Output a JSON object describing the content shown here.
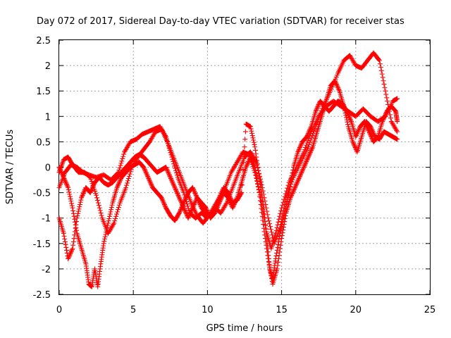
{
  "chart_data": {
    "type": "scatter",
    "title": "Day 072 of 2017, Sidereal Day-to-day VTEC variation (SDTVAR) for receiver stas",
    "xlabel": "GPS time / hours",
    "ylabel": "SDTVAR / TECUs",
    "xlim": [
      0,
      25
    ],
    "ylim": [
      -2.5,
      2.5
    ],
    "xticks": [
      "0",
      "5",
      "10",
      "15",
      "20",
      "25"
    ],
    "yticks": [
      "-2.5",
      "-2",
      "-1.5",
      "-1",
      "-0.5",
      "0",
      "0.5",
      "1",
      "1.5",
      "2",
      "2.5"
    ],
    "grid": true,
    "marker": "+",
    "color": "#ff0000",
    "series": [
      {
        "points": [
          [
            0,
            -0.4
          ],
          [
            0.4,
            -0.1
          ],
          [
            0.8,
            0.05
          ],
          [
            1.2,
            0.0
          ],
          [
            1.6,
            -0.1
          ],
          [
            2.0,
            -0.15
          ],
          [
            2.5,
            -0.2
          ],
          [
            3.0,
            -0.15
          ],
          [
            3.5,
            -0.25
          ],
          [
            4.0,
            -0.1
          ],
          [
            4.4,
            0.3
          ],
          [
            4.8,
            0.5
          ],
          [
            5.2,
            0.55
          ],
          [
            5.6,
            0.65
          ],
          [
            6.0,
            0.7
          ],
          [
            6.4,
            0.75
          ],
          [
            6.8,
            0.8
          ],
          [
            7.2,
            0.6
          ],
          [
            7.6,
            0.2
          ],
          [
            8.0,
            -0.2
          ],
          [
            8.4,
            -0.5
          ],
          [
            8.8,
            -0.9
          ],
          [
            9.2,
            -1.0
          ],
          [
            9.6,
            -0.9
          ],
          [
            10.0,
            -1.0
          ],
          [
            10.4,
            -0.8
          ],
          [
            10.8,
            -0.6
          ],
          [
            11.2,
            -0.4
          ],
          [
            11.6,
            -0.1
          ],
          [
            12.0,
            0.1
          ],
          [
            12.4,
            0.3
          ],
          [
            12.8,
            0.25
          ],
          [
            13.2,
            -0.1
          ],
          [
            13.6,
            -0.6
          ],
          [
            14.0,
            -1.3
          ],
          [
            14.3,
            -1.6
          ],
          [
            14.6,
            -1.3
          ],
          [
            15.0,
            -0.8
          ],
          [
            15.5,
            -0.3
          ],
          [
            16.0,
            0.0
          ],
          [
            16.5,
            0.3
          ],
          [
            17.0,
            0.7
          ],
          [
            17.5,
            1.0
          ],
          [
            18.0,
            1.2
          ],
          [
            18.5,
            1.3
          ],
          [
            19.0,
            1.2
          ],
          [
            19.5,
            1.1
          ],
          [
            20.0,
            1.0
          ],
          [
            20.5,
            1.15
          ],
          [
            21.0,
            1.0
          ],
          [
            21.5,
            0.9
          ],
          [
            22.0,
            1.0
          ],
          [
            22.5,
            1.3
          ],
          [
            22.8,
            1.35
          ]
        ]
      },
      {
        "points": [
          [
            0,
            -0.1
          ],
          [
            0.3,
            0.15
          ],
          [
            0.6,
            0.2
          ],
          [
            0.9,
            0.05
          ],
          [
            1.3,
            -0.1
          ],
          [
            1.7,
            -0.1
          ],
          [
            2.1,
            -0.2
          ],
          [
            2.5,
            -0.55
          ],
          [
            2.9,
            -1.0
          ],
          [
            3.3,
            -1.3
          ],
          [
            3.7,
            -1.1
          ],
          [
            4.1,
            -0.7
          ],
          [
            4.5,
            -0.4
          ],
          [
            4.9,
            0.0
          ],
          [
            5.3,
            0.2
          ],
          [
            5.7,
            0.35
          ],
          [
            6.1,
            0.5
          ],
          [
            6.5,
            0.7
          ],
          [
            6.9,
            0.75
          ],
          [
            7.3,
            0.5
          ],
          [
            7.7,
            0.2
          ],
          [
            8.1,
            -0.1
          ],
          [
            8.5,
            -0.4
          ],
          [
            8.9,
            -0.7
          ],
          [
            9.3,
            -0.95
          ],
          [
            9.7,
            -1.1
          ],
          [
            10.1,
            -0.95
          ],
          [
            10.5,
            -0.8
          ],
          [
            10.9,
            -0.9
          ],
          [
            11.3,
            -0.7
          ],
          [
            11.7,
            -0.4
          ],
          [
            12.1,
            -0.1
          ],
          [
            12.5,
            0.2
          ],
          [
            12.9,
            0.3
          ],
          [
            13.3,
            0.1
          ],
          [
            13.7,
            -0.4
          ],
          [
            14.1,
            -1.0
          ],
          [
            14.5,
            -1.5
          ],
          [
            14.9,
            -1.2
          ],
          [
            15.3,
            -0.6
          ],
          [
            15.8,
            -0.2
          ],
          [
            16.3,
            0.1
          ],
          [
            16.8,
            0.4
          ],
          [
            17.3,
            0.8
          ],
          [
            17.8,
            1.2
          ],
          [
            18.3,
            1.5
          ],
          [
            18.8,
            1.85
          ],
          [
            19.2,
            2.1
          ],
          [
            19.6,
            2.2
          ],
          [
            20.0,
            2.0
          ],
          [
            20.4,
            1.95
          ],
          [
            20.8,
            2.1
          ],
          [
            21.2,
            2.25
          ],
          [
            21.6,
            2.1
          ],
          [
            22.0,
            1.5
          ],
          [
            22.4,
            0.9
          ],
          [
            22.8,
            0.7
          ]
        ]
      },
      {
        "points": [
          [
            0,
            -1.0
          ],
          [
            0.3,
            -1.3
          ],
          [
            0.6,
            -1.8
          ],
          [
            0.9,
            -1.6
          ],
          [
            1.2,
            -1.0
          ],
          [
            1.5,
            -0.6
          ],
          [
            1.8,
            -0.4
          ],
          [
            2.1,
            -0.5
          ],
          [
            2.4,
            -0.3
          ],
          [
            2.7,
            -0.2
          ],
          [
            3.0,
            -0.3
          ],
          [
            3.3,
            -0.35
          ],
          [
            3.6,
            -0.3
          ],
          [
            3.9,
            -0.2
          ],
          [
            4.2,
            -0.1
          ],
          [
            4.5,
            0.0
          ],
          [
            4.8,
            0.1
          ],
          [
            5.1,
            0.2
          ],
          [
            5.4,
            0.25
          ],
          [
            5.7,
            0.2
          ],
          [
            6.0,
            0.1
          ],
          [
            6.3,
            0.0
          ],
          [
            6.6,
            -0.1
          ],
          [
            6.9,
            -0.05
          ],
          [
            7.2,
            0.0
          ],
          [
            7.5,
            -0.2
          ],
          [
            7.8,
            -0.4
          ],
          [
            8.1,
            -0.6
          ],
          [
            8.4,
            -0.8
          ],
          [
            8.7,
            -1.0
          ],
          [
            9.0,
            -0.8
          ],
          [
            9.3,
            -0.6
          ],
          [
            9.6,
            -0.7
          ],
          [
            9.9,
            -0.8
          ],
          [
            10.2,
            -1.0
          ],
          [
            10.5,
            -0.9
          ],
          [
            10.8,
            -0.7
          ],
          [
            11.1,
            -0.5
          ],
          [
            11.4,
            -0.6
          ],
          [
            11.7,
            -0.8
          ],
          [
            12.0,
            -0.6
          ],
          [
            12.3,
            -0.3
          ],
          [
            12.6,
            0.0
          ],
          [
            12.9,
            0.2
          ],
          [
            13.2,
            0.0
          ],
          [
            13.5,
            -0.5
          ],
          [
            13.8,
            -1.2
          ],
          [
            14.1,
            -1.8
          ],
          [
            14.4,
            -2.3
          ],
          [
            14.7,
            -2.0
          ],
          [
            15.0,
            -1.4
          ],
          [
            15.3,
            -0.9
          ],
          [
            15.6,
            -0.6
          ],
          [
            15.9,
            -0.4
          ],
          [
            16.2,
            -0.2
          ],
          [
            16.5,
            0.0
          ],
          [
            16.8,
            0.2
          ],
          [
            17.1,
            0.4
          ],
          [
            17.4,
            0.7
          ],
          [
            17.7,
            1.0
          ],
          [
            18.0,
            1.3
          ],
          [
            18.3,
            1.6
          ],
          [
            18.6,
            1.7
          ],
          [
            18.9,
            1.5
          ],
          [
            19.2,
            1.2
          ],
          [
            19.5,
            0.8
          ],
          [
            19.8,
            0.5
          ],
          [
            20.1,
            0.3
          ],
          [
            20.4,
            0.6
          ],
          [
            20.7,
            0.9
          ],
          [
            21.0,
            0.8
          ],
          [
            21.3,
            0.6
          ],
          [
            21.6,
            0.55
          ],
          [
            21.9,
            0.7
          ],
          [
            22.2,
            0.65
          ],
          [
            22.5,
            0.6
          ],
          [
            22.8,
            0.55
          ]
        ]
      },
      {
        "points": [
          [
            0,
            0.0
          ],
          [
            0.3,
            -0.2
          ],
          [
            0.6,
            -0.4
          ],
          [
            0.9,
            -0.8
          ],
          [
            1.2,
            -1.3
          ],
          [
            1.5,
            -1.6
          ],
          [
            1.8,
            -1.9
          ],
          [
            2.0,
            -2.3
          ],
          [
            2.2,
            -2.35
          ],
          [
            2.4,
            -2.0
          ],
          [
            2.6,
            -2.35
          ],
          [
            2.8,
            -1.9
          ],
          [
            3.0,
            -1.5
          ],
          [
            3.3,
            -1.1
          ],
          [
            3.6,
            -0.7
          ],
          [
            3.9,
            -0.4
          ],
          [
            4.2,
            -0.2
          ],
          [
            4.5,
            -0.1
          ],
          [
            4.8,
            0.0
          ],
          [
            5.1,
            0.05
          ],
          [
            5.4,
            0.1
          ],
          [
            5.7,
            0.0
          ],
          [
            6.0,
            -0.2
          ],
          [
            6.3,
            -0.4
          ],
          [
            6.6,
            -0.5
          ],
          [
            6.9,
            -0.6
          ],
          [
            7.2,
            -0.8
          ],
          [
            7.5,
            -0.95
          ],
          [
            7.8,
            -1.05
          ],
          [
            8.1,
            -0.9
          ],
          [
            8.4,
            -0.7
          ],
          [
            8.7,
            -0.5
          ],
          [
            9.0,
            -0.4
          ],
          [
            9.3,
            -0.6
          ],
          [
            9.6,
            -0.8
          ],
          [
            9.9,
            -0.9
          ],
          [
            10.2,
            -0.95
          ],
          [
            10.5,
            -0.85
          ],
          [
            10.8,
            -0.6
          ],
          [
            11.1,
            -0.4
          ],
          [
            11.4,
            -0.5
          ],
          [
            11.7,
            -0.7
          ],
          [
            12.0,
            -0.65
          ],
          [
            12.3,
            -0.5
          ],
          [
            12.6,
            0.85
          ],
          [
            12.9,
            0.8
          ],
          [
            13.2,
            0.4
          ],
          [
            13.5,
            -0.2
          ],
          [
            13.8,
            -0.8
          ],
          [
            14.0,
            -1.4
          ],
          [
            14.2,
            -2.0
          ],
          [
            14.4,
            -2.2
          ],
          [
            14.6,
            -1.8
          ],
          [
            14.9,
            -1.3
          ],
          [
            15.2,
            -0.9
          ],
          [
            15.5,
            -0.5
          ],
          [
            15.8,
            0.0
          ],
          [
            16.1,
            0.3
          ],
          [
            16.4,
            0.5
          ],
          [
            16.7,
            0.6
          ],
          [
            17.0,
            0.8
          ],
          [
            17.3,
            1.1
          ],
          [
            17.6,
            1.3
          ],
          [
            17.9,
            1.2
          ],
          [
            18.2,
            1.1
          ],
          [
            18.5,
            1.2
          ],
          [
            18.8,
            1.3
          ],
          [
            19.1,
            1.25
          ],
          [
            19.4,
            1.1
          ],
          [
            19.7,
            0.9
          ],
          [
            20.0,
            0.6
          ],
          [
            20.3,
            0.8
          ],
          [
            20.6,
            0.9
          ],
          [
            20.9,
            0.7
          ],
          [
            21.2,
            0.5
          ],
          [
            21.5,
            0.6
          ],
          [
            21.8,
            0.9
          ],
          [
            22.1,
            1.1
          ],
          [
            22.4,
            1.2
          ],
          [
            22.7,
            1.1
          ],
          [
            22.8,
            0.9
          ]
        ]
      }
    ]
  }
}
